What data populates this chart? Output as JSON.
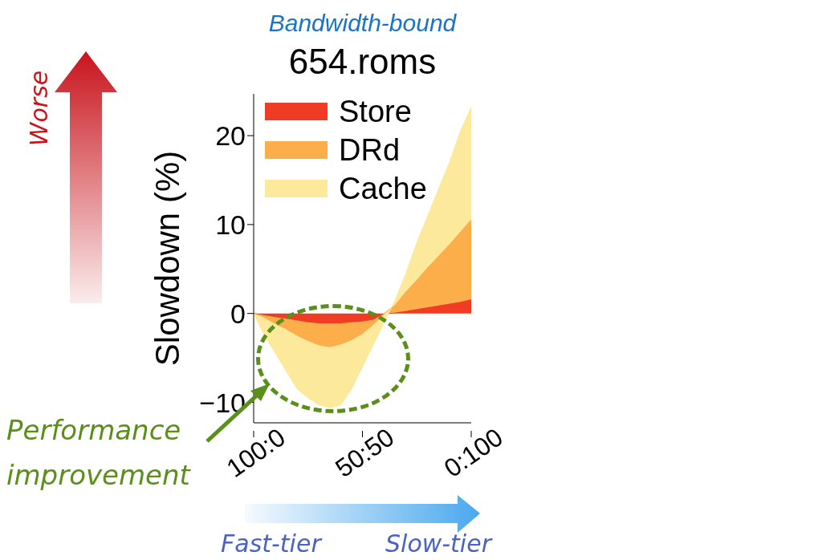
{
  "chart_data": {
    "type": "area",
    "stacked": true,
    "title": "654.roms",
    "subtitle": "Bandwidth-bound",
    "ylabel": "Slowdown (%)",
    "categories": [
      "100:0",
      null,
      null,
      null,
      null,
      null,
      null,
      null,
      null,
      null,
      "50:50",
      null,
      null,
      null,
      null,
      null,
      null,
      null,
      null,
      null,
      "0:100"
    ],
    "series": [
      {
        "name": "Store",
        "color": "#f03c24",
        "values": [
          0,
          -0.2,
          -0.4,
          -0.6,
          -0.8,
          -1,
          -1.1,
          -1.1,
          -1.1,
          -1,
          -0.9,
          -0.7,
          -0.1,
          0.1,
          0.3,
          0.5,
          0.7,
          0.9,
          1.1,
          1.3,
          1.6
        ]
      },
      {
        "name": "DRd",
        "color": "#fbae4a",
        "values": [
          0,
          -0.3,
          -0.8,
          -1.2,
          -1.7,
          -2.1,
          -2.5,
          -2.7,
          -2.4,
          -2,
          -1.4,
          -0.6,
          0,
          0.9,
          2.2,
          3.3,
          4.5,
          5.6,
          6.7,
          7.9,
          9.0
        ]
      },
      {
        "name": "Cache",
        "color": "#fde99b",
        "values": [
          0,
          -2,
          -3.3,
          -4.7,
          -6,
          -6.4,
          -6.7,
          -6.8,
          -6.8,
          -5.5,
          -3.7,
          -2.2,
          -0.9,
          0.5,
          2,
          4.2,
          5.8,
          7.5,
          9.2,
          11.3,
          12.6
        ]
      }
    ],
    "ylim": [
      -12.3,
      24.7
    ],
    "yticks": [
      {
        "value": -10,
        "label": "−10"
      },
      0,
      10,
      20
    ],
    "legend": "top left",
    "grid": false,
    "annotations": [
      "Worse",
      "Performance improvement",
      "Fast-tier",
      "Slow-tier"
    ]
  }
}
